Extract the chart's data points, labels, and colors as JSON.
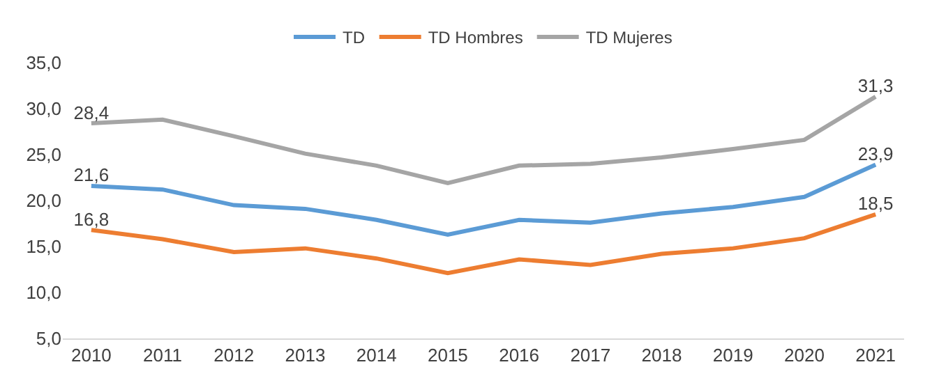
{
  "chart_data": {
    "type": "line",
    "categories": [
      "2010",
      "2011",
      "2012",
      "2013",
      "2014",
      "2015",
      "2016",
      "2017",
      "2018",
      "2019",
      "2020",
      "2021"
    ],
    "series": [
      {
        "name": "TD",
        "color": "#5b9bd5",
        "values": [
          21.6,
          21.2,
          19.5,
          19.1,
          17.9,
          16.3,
          17.9,
          17.6,
          18.6,
          19.3,
          20.4,
          23.9
        ],
        "value_labels": [
          "21,6",
          null,
          null,
          null,
          null,
          null,
          null,
          null,
          null,
          null,
          null,
          "23,9"
        ]
      },
      {
        "name": "TD Hombres",
        "color": "#ed7d31",
        "values": [
          16.8,
          15.8,
          14.4,
          14.8,
          13.7,
          12.1,
          13.6,
          13.0,
          14.2,
          14.8,
          15.9,
          18.5
        ],
        "value_labels": [
          "16,8",
          null,
          null,
          null,
          null,
          null,
          null,
          null,
          null,
          null,
          null,
          "18,5"
        ]
      },
      {
        "name": "TD Mujeres",
        "color": "#a5a5a5",
        "values": [
          28.4,
          28.8,
          27.0,
          25.1,
          23.8,
          21.9,
          23.8,
          24.0,
          24.7,
          25.6,
          26.6,
          31.3
        ],
        "value_labels": [
          "28,4",
          null,
          null,
          null,
          null,
          null,
          null,
          null,
          null,
          null,
          null,
          "31,3"
        ]
      }
    ],
    "ylim": [
      5,
      35
    ],
    "yticks": [
      {
        "value": 5,
        "label": "5,0"
      },
      {
        "value": 10,
        "label": "10,0"
      },
      {
        "value": 15,
        "label": "15,0"
      },
      {
        "value": 20,
        "label": "20,0"
      },
      {
        "value": 25,
        "label": "25,0"
      },
      {
        "value": 30,
        "label": "30,0"
      },
      {
        "value": 35,
        "label": "35,0"
      }
    ],
    "legend": "top",
    "marker": "none",
    "line_style": "solid"
  }
}
